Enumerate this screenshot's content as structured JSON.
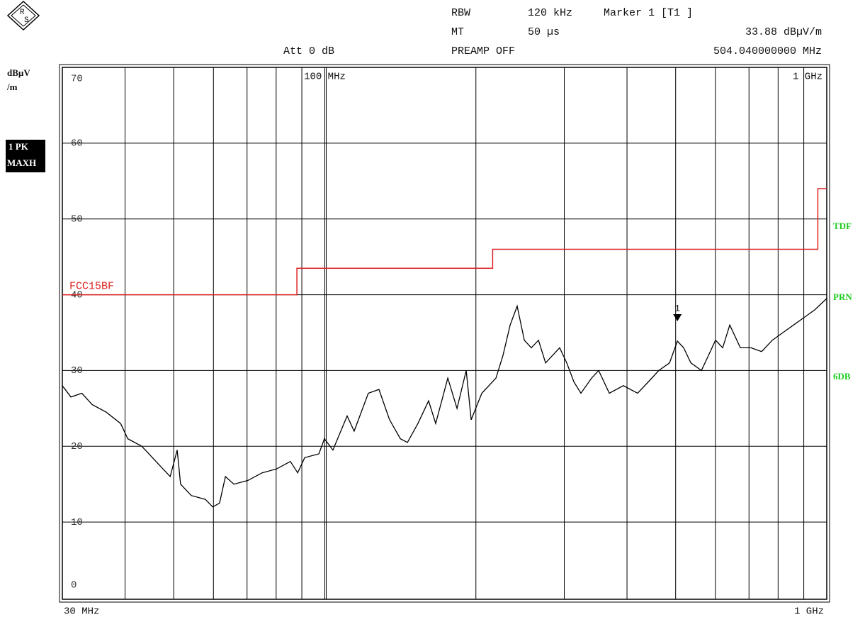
{
  "logo": {
    "top": "R",
    "bottom": "S"
  },
  "header": {
    "rbw_label": "RBW",
    "rbw_value": "120 kHz",
    "marker_title": "Marker 1 [T1 ]",
    "mt_label": "MT",
    "mt_value": "50 µs",
    "att": "Att 0 dB",
    "preamp": "PREAMP OFF"
  },
  "side": {
    "unit_1": "dBµV",
    "unit_2": "/m",
    "trace_1": "1 PK",
    "trace_2": "MAXH",
    "right_1": "TDF",
    "right_2": "PRN",
    "right_3": "6DB"
  },
  "chart_data": {
    "type": "line",
    "xscale": "log",
    "xlim": [
      30,
      1000
    ],
    "ylim": [
      0,
      70
    ],
    "yticks": [
      0,
      10,
      20,
      30,
      40,
      50,
      60,
      70
    ],
    "xticks": [
      {
        "value": 30,
        "label": "30 MHz"
      },
      {
        "value": 100,
        "label": "100 MHz"
      },
      {
        "value": 1000,
        "label": "1 GHz"
      }
    ],
    "xgrid": [
      40,
      50,
      60,
      70,
      80,
      90,
      100,
      200,
      300,
      400,
      500,
      600,
      700,
      800,
      900
    ],
    "grid": true,
    "series": [
      {
        "name": "FCC15BF",
        "color": "#dd2222",
        "x": [
          30,
          88,
          88,
          216,
          216,
          960,
          960,
          1000
        ],
        "values": [
          40,
          40,
          43.5,
          43.5,
          46,
          46,
          54,
          54
        ]
      },
      {
        "color": "#000000",
        "x": [
          30,
          31.2,
          32.8,
          34.4,
          36.7,
          39.2,
          40.5,
          43.2,
          46.1,
          49.2,
          50.8,
          51.6,
          54.2,
          57.8,
          59.8,
          61.7,
          63.4,
          65.9,
          70.3,
          75.0,
          80.1,
          85.4,
          88.3,
          91.2,
          97.3,
          99.8,
          103.8,
          110.8,
          114.4,
          122.1,
          128.2,
          134.6,
          141.4,
          146.1,
          153.3,
          161.0,
          166.3,
          175.8,
          183.4,
          191.3,
          195.7,
          205.5,
          219.3,
          226.5,
          234.0,
          241.7,
          249.7,
          257.9,
          266.5,
          275.3,
          293.7,
          303.4,
          313.5,
          323.8,
          340.1,
          351.2,
          368.8,
          393.5,
          419.9,
          441.0,
          462.9,
          486.2,
          504.04,
          518.7,
          536.1,
          562.8,
          581.4,
          600.3,
          620.4,
          640.8,
          672.9,
          706.5,
          741.9,
          779.1,
          817.8,
          858.6,
          901.5,
          946.5,
          1000
        ],
        "values": [
          28,
          26.5,
          27,
          25.5,
          24.5,
          23,
          21,
          20,
          18,
          16,
          19.5,
          15,
          13.5,
          13,
          12,
          12.5,
          16,
          15,
          15.5,
          16.5,
          17,
          18,
          16.5,
          18.5,
          19,
          21,
          19.5,
          24,
          22,
          27,
          27.5,
          23.5,
          21,
          20.5,
          23,
          26,
          23,
          29,
          25,
          30,
          23.5,
          27,
          29,
          32,
          36,
          38.5,
          34,
          33,
          34,
          31,
          33,
          31,
          28.5,
          27,
          29,
          30,
          27,
          28,
          27,
          28.5,
          30,
          31,
          33.88,
          33,
          31,
          30,
          32,
          34,
          33,
          36,
          33,
          33,
          32.5,
          34,
          35,
          36,
          37,
          38,
          39.5
        ]
      }
    ],
    "marker": {
      "label": "1",
      "x": 504.04,
      "y": 33.88,
      "readout": "33.88 dBµV/m",
      "freq_readout": "504.040000000 MHz"
    }
  }
}
